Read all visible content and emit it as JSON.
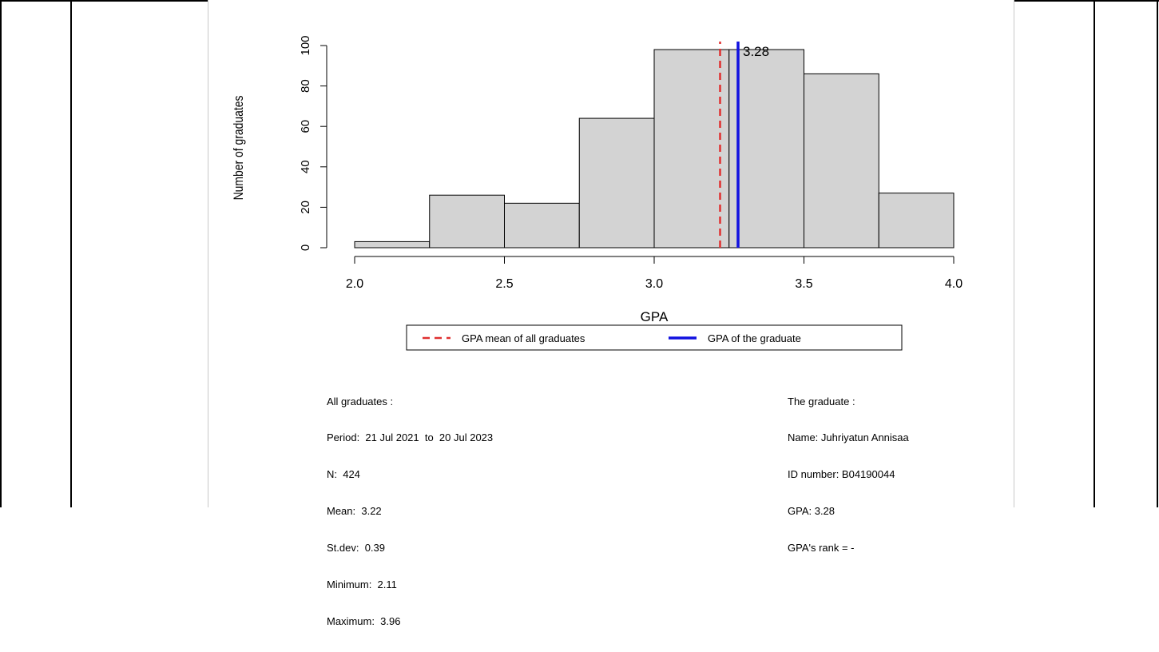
{
  "chart_data": {
    "type": "bar",
    "title": "",
    "xlabel": "GPA",
    "ylabel": "Number of graduates",
    "bins": [
      {
        "start": 2.0,
        "end": 2.25,
        "count": 3
      },
      {
        "start": 2.25,
        "end": 2.5,
        "count": 26
      },
      {
        "start": 2.5,
        "end": 2.75,
        "count": 22
      },
      {
        "start": 2.75,
        "end": 3.0,
        "count": 64
      },
      {
        "start": 3.0,
        "end": 3.25,
        "count": 98
      },
      {
        "start": 3.25,
        "end": 3.5,
        "count": 98
      },
      {
        "start": 3.5,
        "end": 3.75,
        "count": 86
      },
      {
        "start": 3.75,
        "end": 4.0,
        "count": 27
      }
    ],
    "xlim": [
      2.0,
      4.0
    ],
    "ylim": [
      0,
      100
    ],
    "x_ticks": [
      "2.0",
      "2.5",
      "3.0",
      "3.5",
      "4.0"
    ],
    "y_ticks": [
      "0",
      "20",
      "40",
      "60",
      "80",
      "100"
    ],
    "bar_color": "#d3d3d3",
    "mean_line": {
      "value": 3.22,
      "color": "#e03030",
      "style": "dashed"
    },
    "graduate_line": {
      "value": 3.28,
      "color": "#1010e0",
      "style": "solid",
      "label": "3.28"
    },
    "grid": false,
    "legend": {
      "position": "bottom",
      "entries": [
        {
          "label": "GPA mean of all graduates",
          "color": "#e03030",
          "style": "dashed"
        },
        {
          "label": "GPA of the graduate",
          "color": "#1010e0",
          "style": "solid"
        }
      ]
    }
  },
  "all_graduates": {
    "heading": "All graduates :",
    "period": "Period:  21 Jul 2021  to  20 Jul 2023",
    "n": "N:  424",
    "mean": "Mean:  3.22",
    "stdev": "St.dev:  0.39",
    "minimum": "Minimum:  2.11",
    "maximum": "Maximum:  3.96"
  },
  "the_graduate": {
    "heading": "The graduate :",
    "name": "Name: Juhriyatun Annisaa",
    "id_number": "ID number: B04190044",
    "gpa": "GPA: 3.28",
    "rank": "GPA's rank = -"
  }
}
